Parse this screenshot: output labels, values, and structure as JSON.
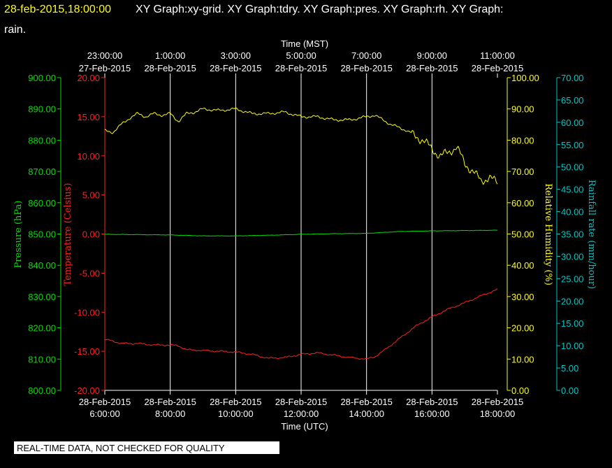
{
  "header": {
    "timestamp": "28-feb-2015,18:00:00",
    "titles_line1": "XY Graph:xy-grid.  XY Graph:tdry.  XY Graph:pres.  XY Graph:rh.  XY Graph:",
    "titles_line2": "rain."
  },
  "footer": {
    "notice": "REAL-TIME DATA, NOT CHECKED FOR QUALITY"
  },
  "colors": {
    "background": "#000000",
    "grid": "#ffffff",
    "pressure": "#00e000",
    "temperature": "#ff2020",
    "humidity": "#ffff00",
    "rain": "#00c8c8",
    "text": "#ffffff"
  },
  "chart_data": {
    "type": "line",
    "grid": true,
    "x_bottom": {
      "label": "Time (UTC)",
      "ticks": [
        {
          "date": "28-Feb-2015",
          "time": "6:00:00"
        },
        {
          "date": "28-Feb-2015",
          "time": "8:00:00"
        },
        {
          "date": "28-Feb-2015",
          "time": "10:00:00"
        },
        {
          "date": "28-Feb-2015",
          "time": "12:00:00"
        },
        {
          "date": "28-Feb-2015",
          "time": "14:00:00"
        },
        {
          "date": "28-Feb-2015",
          "time": "16:00:00"
        },
        {
          "date": "28-Feb-2015",
          "time": "18:00:00"
        }
      ],
      "range_hours_utc": [
        6,
        18
      ]
    },
    "x_top": {
      "label": "Time (MST)",
      "ticks": [
        {
          "time": "23:00:00",
          "date": "27-Feb-2015"
        },
        {
          "time": "1:00:00",
          "date": "28-Feb-2015"
        },
        {
          "time": "3:00:00",
          "date": "28-Feb-2015"
        },
        {
          "time": "5:00:00",
          "date": "28-Feb-2015"
        },
        {
          "time": "7:00:00",
          "date": "28-Feb-2015"
        },
        {
          "time": "9:00:00",
          "date": "28-Feb-2015"
        },
        {
          "time": "11:00:00",
          "date": "28-Feb-2015"
        }
      ]
    },
    "axes": {
      "pressure": {
        "label": "Pressure (hPa)",
        "ylim": [
          800,
          900
        ],
        "ticks": [
          "900.00",
          "890.00",
          "880.00",
          "870.00",
          "860.00",
          "850.00",
          "840.00",
          "830.00",
          "820.00",
          "810.00",
          "800.00"
        ]
      },
      "temperature": {
        "label": "Temperature (Celsius)",
        "ylim": [
          -20,
          20
        ],
        "ticks": [
          "20.00",
          "15.00",
          "10.00",
          "5.00",
          "0.00",
          "-5.00",
          "-10.00",
          "-15.00",
          "-20.00"
        ]
      },
      "humidity": {
        "label": "Relative Humidity (%)",
        "ylim": [
          0,
          100
        ],
        "ticks": [
          "100.00",
          "90.00",
          "80.00",
          "70.00",
          "60.00",
          "50.00",
          "40.00",
          "30.00",
          "20.00",
          "10.00",
          "0.00"
        ]
      },
      "rain": {
        "label": "Rainfall rate (mm/hour)",
        "ylim": [
          0,
          70
        ],
        "ticks": [
          "70.00",
          "65.00",
          "60.00",
          "55.00",
          "50.00",
          "45.00",
          "40.00",
          "35.00",
          "30.00",
          "25.00",
          "20.00",
          "15.00",
          "10.00",
          "5.00",
          "0.00"
        ]
      }
    },
    "series": [
      {
        "name": "Temperature (Celsius)",
        "axis": "temperature",
        "x_hours_utc": [
          6.0,
          6.25,
          6.5,
          7.0,
          7.5,
          8.0,
          8.25,
          8.5,
          9.0,
          9.5,
          10.0,
          10.5,
          11.0,
          11.5,
          12.0,
          12.5,
          13.0,
          13.5,
          14.0,
          14.25,
          14.5,
          15.0,
          15.5,
          16.0,
          16.5,
          17.0,
          17.5,
          18.0
        ],
        "values": [
          -13.5,
          -13.7,
          -14.0,
          -14.0,
          -14.2,
          -14.2,
          -14.3,
          -14.8,
          -14.9,
          -15.0,
          -15.1,
          -15.4,
          -15.9,
          -15.8,
          -15.4,
          -15.2,
          -15.5,
          -15.8,
          -16.0,
          -15.7,
          -15.0,
          -13.4,
          -11.8,
          -10.6,
          -9.6,
          -8.8,
          -7.9,
          -7.1
        ]
      },
      {
        "name": "Pressure (hPa)",
        "axis": "pressure",
        "x_hours_utc": [
          6.0,
          7.0,
          8.0,
          9.0,
          10.0,
          11.0,
          12.0,
          13.0,
          14.0,
          15.0,
          16.0,
          17.0,
          18.0
        ],
        "values": [
          849.9,
          849.8,
          849.7,
          849.4,
          849.4,
          849.6,
          849.9,
          850.1,
          850.2,
          850.8,
          851.0,
          851.1,
          851.2
        ]
      },
      {
        "name": "Relative Humidity (%)",
        "axis": "humidity",
        "x_hours_utc": [
          6.0,
          6.25,
          6.5,
          6.75,
          7.0,
          7.25,
          7.5,
          7.75,
          8.0,
          8.25,
          8.5,
          8.75,
          9.0,
          9.5,
          10.0,
          10.5,
          11.0,
          11.5,
          12.0,
          12.5,
          13.0,
          13.5,
          14.0,
          14.25,
          14.5,
          14.75,
          15.0,
          15.25,
          15.5,
          15.75,
          16.0,
          16.25,
          16.5,
          16.75,
          17.0,
          17.25,
          17.5,
          17.75,
          18.0
        ],
        "values": [
          83.0,
          82.5,
          85.0,
          87.0,
          88.5,
          87.5,
          88.5,
          88.0,
          88.5,
          86.0,
          88.5,
          89.0,
          90.0,
          89.5,
          90.0,
          88.5,
          88.5,
          89.0,
          87.5,
          87.5,
          86.5,
          86.5,
          87.5,
          88.0,
          86.5,
          85.0,
          84.0,
          83.0,
          81.0,
          80.0,
          77.0,
          75.0,
          76.0,
          78.0,
          72.5,
          70.0,
          67.0,
          68.0,
          66.5
        ]
      }
    ]
  }
}
